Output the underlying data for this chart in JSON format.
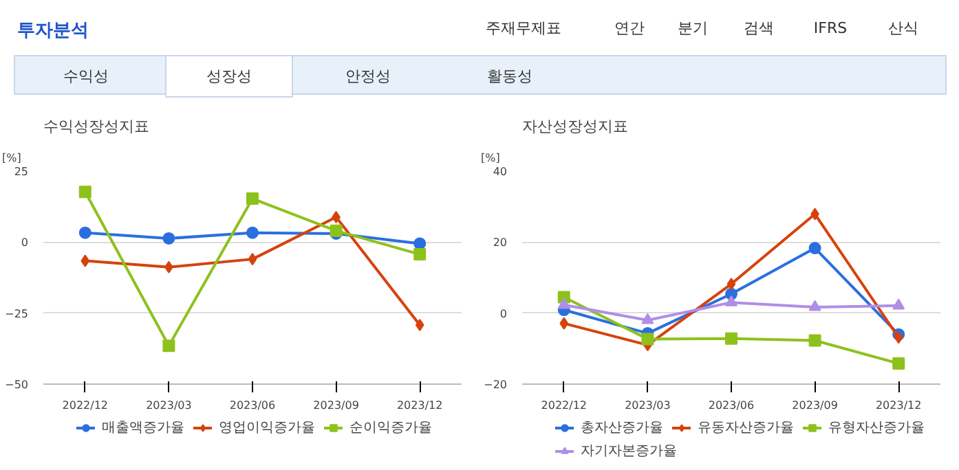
{
  "chart_data": [
    {
      "type": "other",
      "title": "투자분석",
      "annotations": [
        "주재무제표",
        "연간",
        "분기",
        "검색",
        "IFRS",
        "산식",
        "수익성",
        "성장성",
        "안정성",
        "활동성"
      ]
    },
    {
      "type": "line",
      "title": "수익성장성지표",
      "ylabel": "[%]",
      "categories": [
        "2022/12",
        "2023/03",
        "2023/06",
        "2023/09",
        "2023/12"
      ],
      "ylim": [
        -50,
        25
      ],
      "yticks": [
        -50,
        -25,
        0,
        25
      ],
      "grid": "y",
      "legend": "bottom",
      "series": [
        {
          "name": "매출액증가율",
          "color": "#2a6fe0",
          "marker": "circle",
          "values": [
            3.3,
            1.3,
            3.3,
            3,
            -0.5
          ]
        },
        {
          "name": "영업이익증가율",
          "color": "#d6420c",
          "marker": "diamond",
          "values": [
            -6.6,
            -8.8,
            -6,
            8.8,
            -29.2
          ]
        },
        {
          "name": "순이익증가율",
          "color": "#8dc21c",
          "marker": "square",
          "values": [
            17.7,
            -36.5,
            15.3,
            4,
            -4.3
          ]
        }
      ]
    },
    {
      "type": "line",
      "title": "자산성장성지표",
      "ylabel": "[%]",
      "categories": [
        "2022/12",
        "2023/03",
        "2023/06",
        "2023/09",
        "2023/12"
      ],
      "ylim": [
        -20,
        40
      ],
      "yticks": [
        -20,
        0,
        20,
        40
      ],
      "grid": "y",
      "legend": "bottom",
      "series": [
        {
          "name": "총자산증가율",
          "color": "#2a6fe0",
          "marker": "circle",
          "values": [
            0.9,
            -5.7,
            5.4,
            18.3,
            -6
          ]
        },
        {
          "name": "유동자산증가율",
          "color": "#d6420c",
          "marker": "diamond",
          "values": [
            -2.9,
            -9,
            8.2,
            27.9,
            -6.9
          ]
        },
        {
          "name": "유형자산증가율",
          "color": "#8dc21c",
          "marker": "square",
          "values": [
            4.5,
            -7.3,
            -7.2,
            -7.7,
            -14.2
          ]
        },
        {
          "name": "자기자본증가율",
          "color": "#b08ee8",
          "marker": "triangle",
          "values": [
            2.3,
            -2,
            3,
            1.7,
            2.1
          ]
        }
      ]
    }
  ]
}
